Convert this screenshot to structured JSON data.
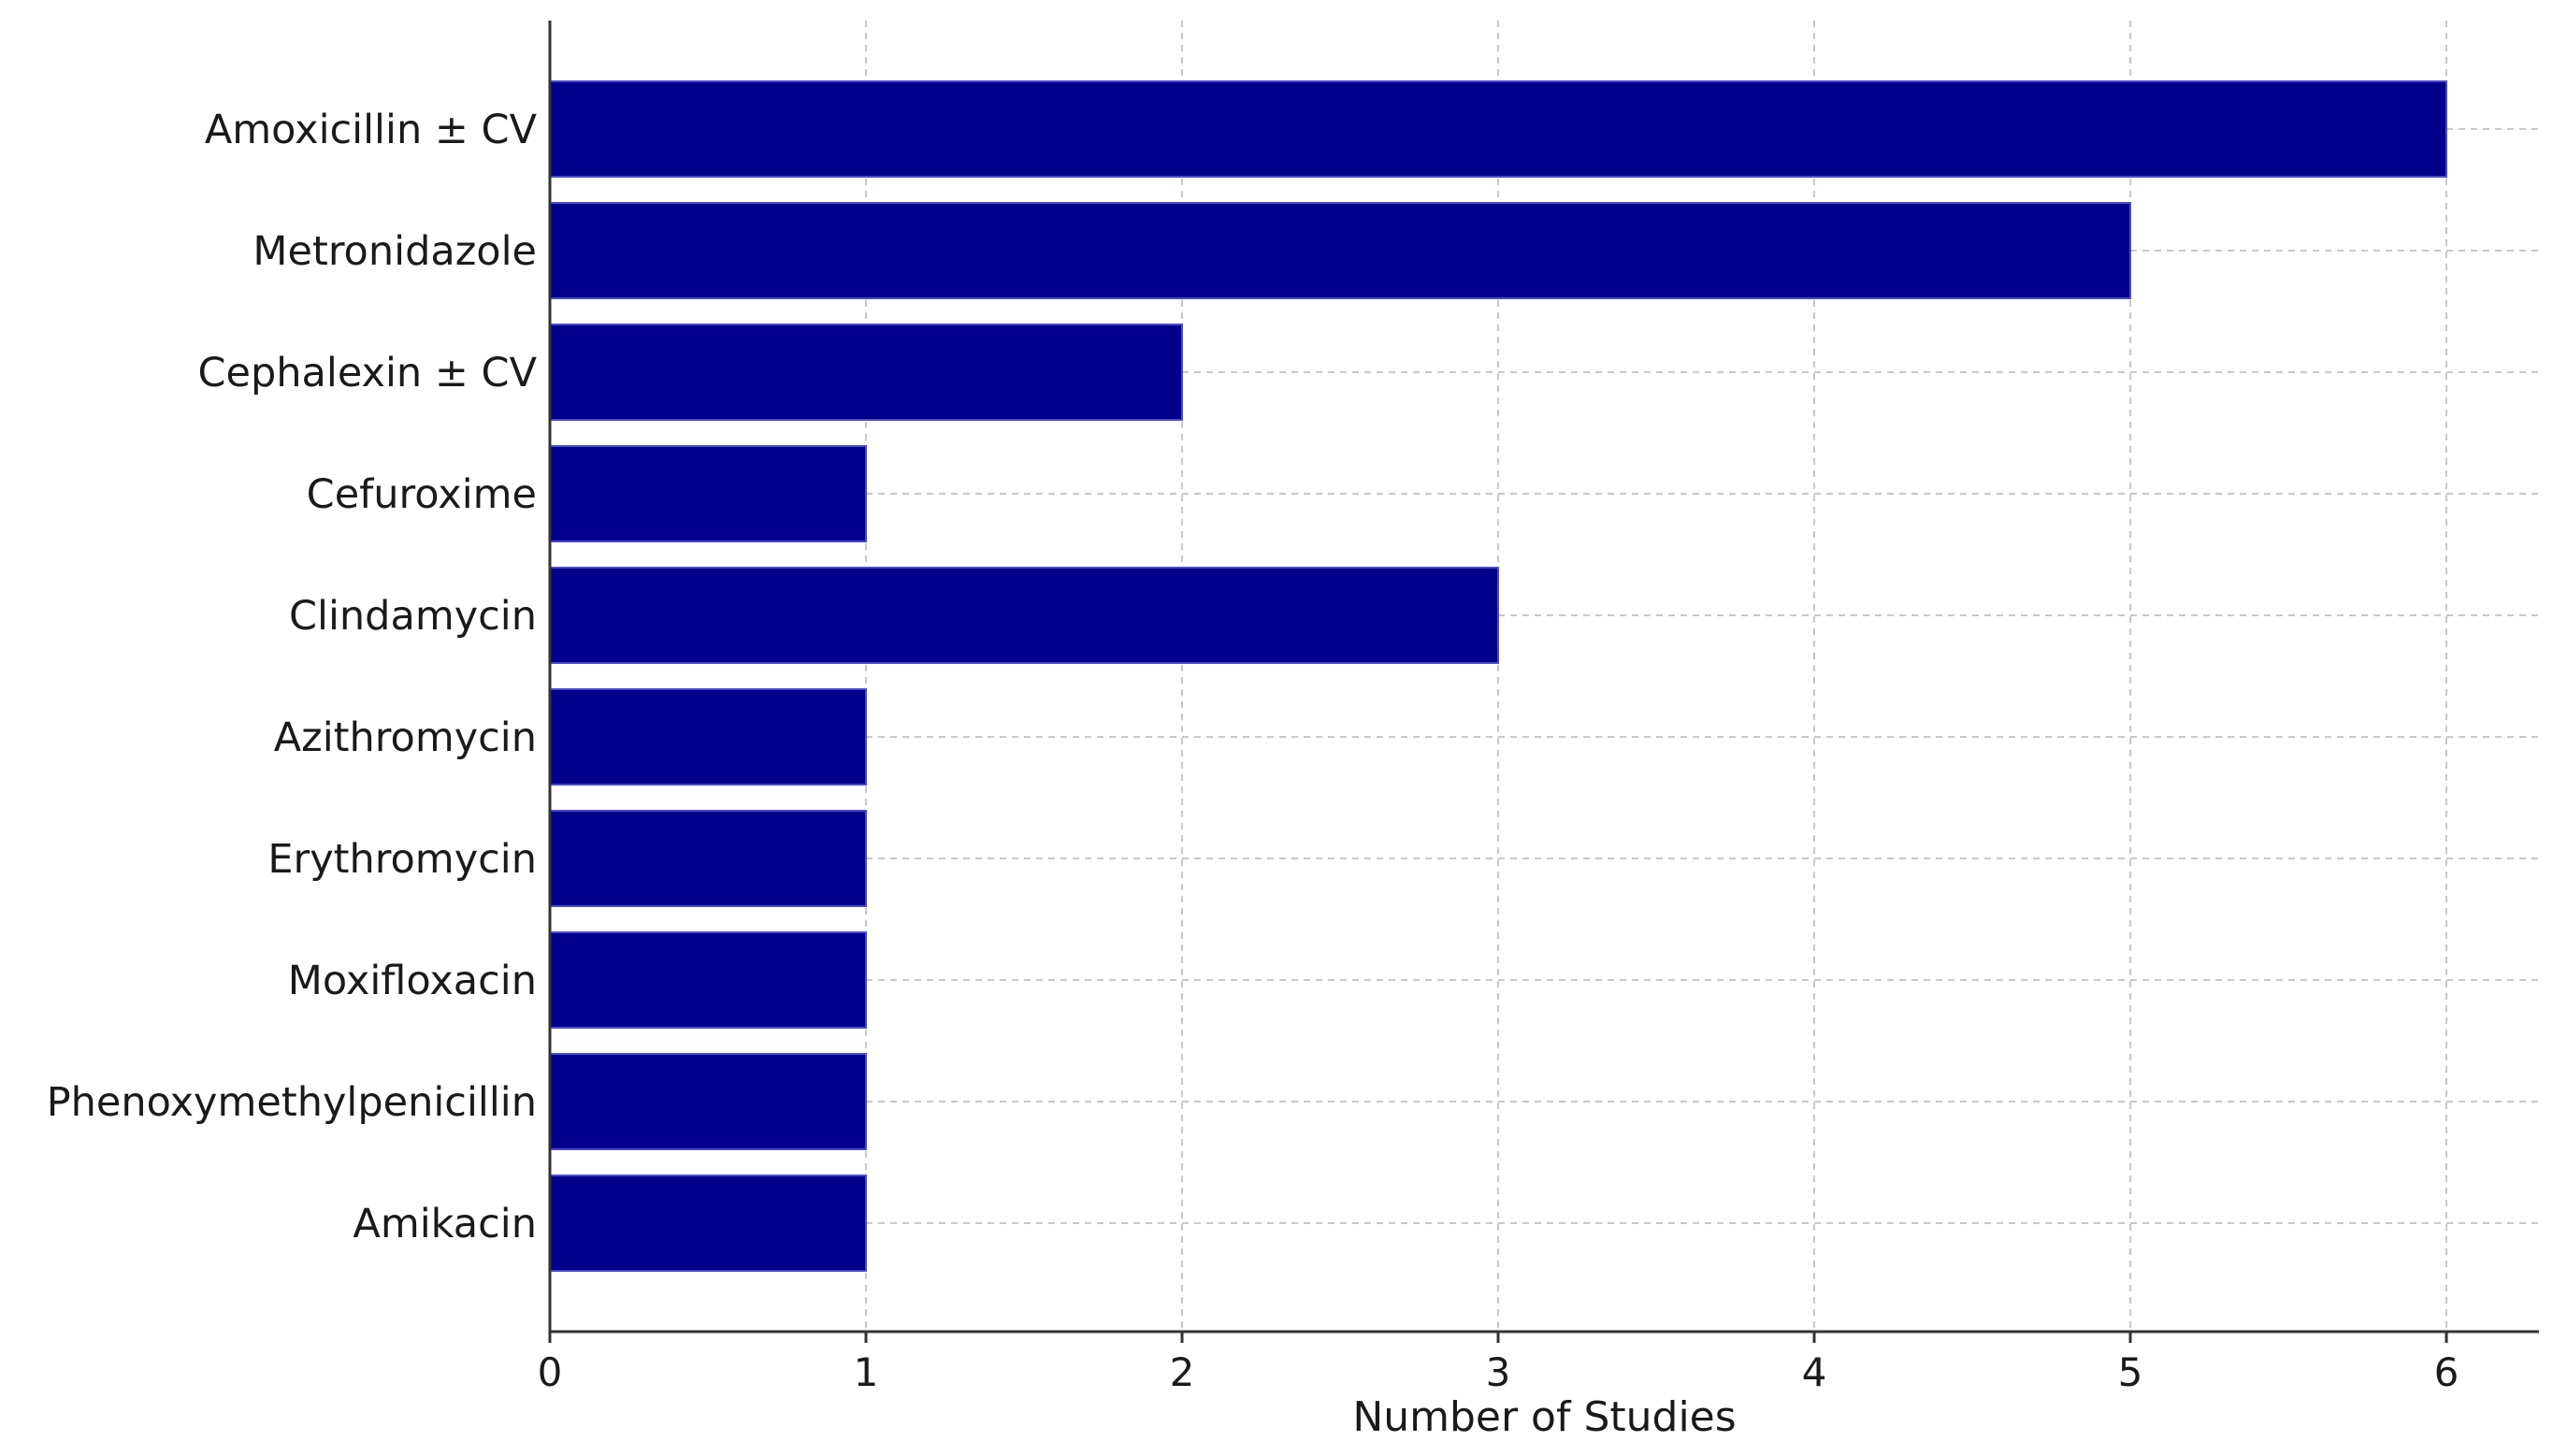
{
  "chart_data": {
    "type": "bar",
    "orientation": "horizontal",
    "categories": [
      "Amoxicillin ± CV",
      "Metronidazole",
      "Cephalexin ± CV",
      "Cefuroxime",
      "Clindamycin",
      "Azithromycin",
      "Erythromycin",
      "Moxifloxacin",
      "Phenoxymethylpenicillin",
      "Amikacin"
    ],
    "values": [
      6,
      5,
      2,
      1,
      3,
      1,
      1,
      1,
      1,
      1
    ],
    "title": "",
    "xlabel": "Number of Studies",
    "ylabel": "",
    "xlim": [
      0,
      6.3
    ],
    "xticks": [
      0,
      1,
      2,
      3,
      4,
      5,
      6
    ],
    "grid": true,
    "bar_color": "#00008b"
  }
}
